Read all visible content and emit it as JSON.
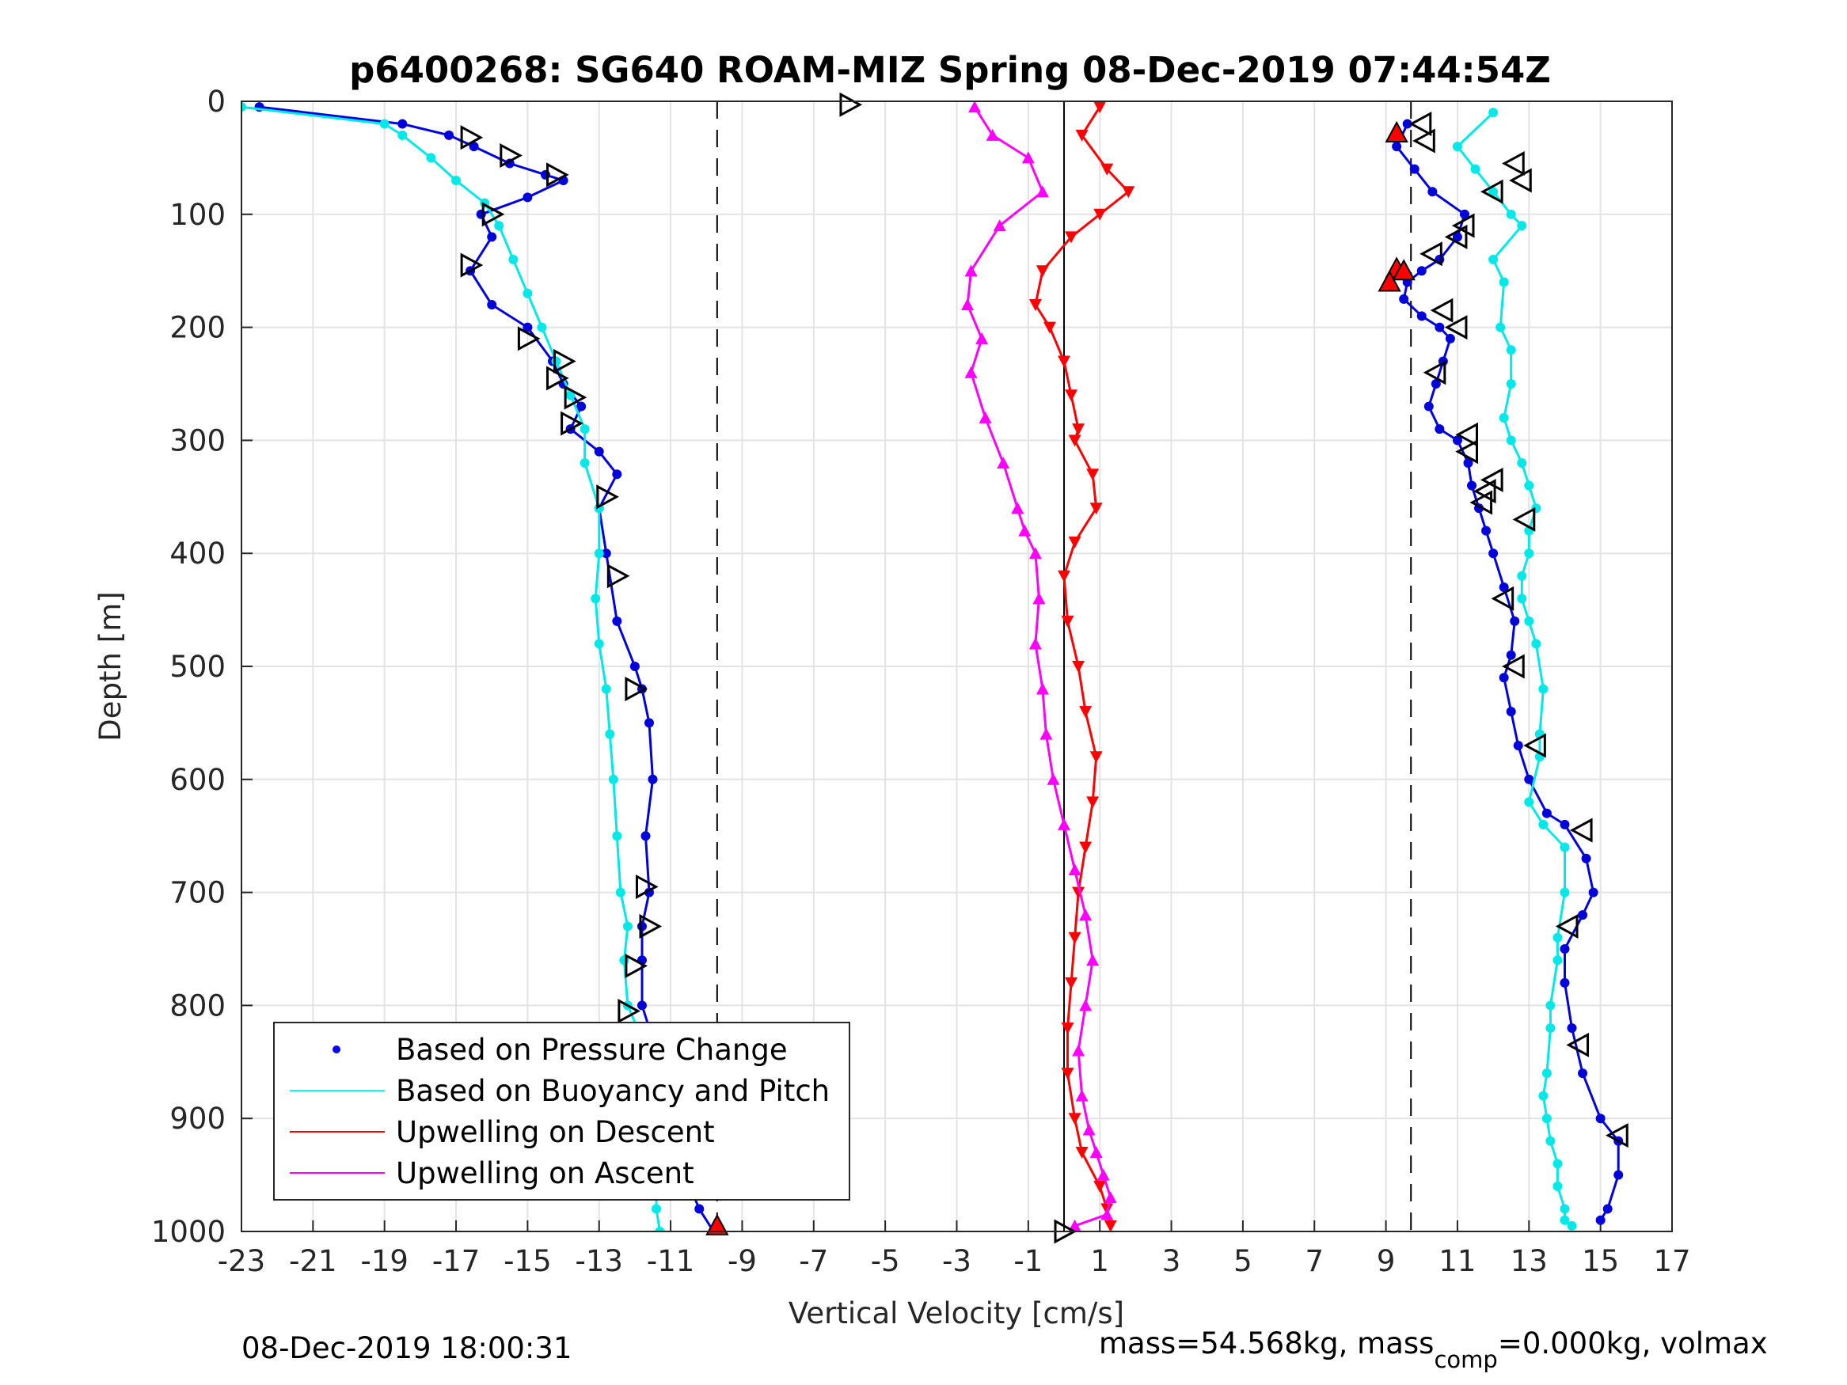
{
  "chart_data": {
    "type": "line",
    "title": "p6400268: SG640 ROAM-MIZ Spring 08-Dec-2019 07:44:54Z",
    "xlabel": "Vertical Velocity [cm/s]",
    "ylabel": "Depth [m]",
    "xlim": [
      -23,
      17
    ],
    "ylim": [
      0,
      1000
    ],
    "y_reversed": true,
    "grid": true,
    "x_ticks": [
      "-23",
      "-21",
      "-19",
      "-17",
      "-15",
      "-13",
      "-11",
      "-9",
      "-7",
      "-5",
      "-3",
      "-1",
      "1",
      "3",
      "5",
      "7",
      "9",
      "11",
      "13",
      "15",
      "17"
    ],
    "y_ticks": [
      "0",
      "100",
      "200",
      "300",
      "400",
      "500",
      "600",
      "700",
      "800",
      "900",
      "1000"
    ],
    "vertical_reference_lines": [
      {
        "x": -9.7,
        "style": "dashed"
      },
      {
        "x": 0,
        "style": "solid"
      },
      {
        "x": 9.7,
        "style": "dashed"
      }
    ],
    "legend": {
      "position": "bottom-left",
      "entries": [
        {
          "label": "Based on Pressure Change",
          "color": "#0000ff",
          "marker": "dot"
        },
        {
          "label": "Based on Buoyancy and Pitch",
          "color": "#00ffff",
          "marker": "line"
        },
        {
          "label": "Upwelling on Descent",
          "color": "#ff0000",
          "marker": "line"
        },
        {
          "label": "Upwelling on Ascent",
          "color": "#ff00ff",
          "marker": "line"
        }
      ]
    },
    "series": [
      {
        "name": "Based on Pressure Change",
        "phase": "descent",
        "color": "#0000dd",
        "x": [
          -22.5,
          -18.5,
          -17.2,
          -16.5,
          -15.5,
          -14.5,
          -14.0,
          -15.0,
          -16.3,
          -16.0,
          -16.6,
          -16.0,
          -15.0,
          -14.3,
          -14.0,
          -13.5,
          -13.8,
          -13.0,
          -12.5,
          -13.0,
          -12.8,
          -12.5,
          -12.0,
          -11.8,
          -11.6,
          -11.5,
          -11.7,
          -11.6,
          -11.8,
          -11.8,
          -11.8,
          -11.5,
          -11.0,
          -10.7,
          -10.6,
          -10.2,
          -9.8
        ],
        "y": [
          5,
          20,
          30,
          40,
          55,
          65,
          70,
          85,
          100,
          120,
          150,
          180,
          200,
          230,
          250,
          270,
          290,
          310,
          330,
          360,
          400,
          460,
          500,
          520,
          550,
          600,
          650,
          700,
          730,
          760,
          800,
          830,
          870,
          900,
          950,
          980,
          1000
        ]
      },
      {
        "name": "Based on Buoyancy and Pitch",
        "phase": "descent",
        "color": "#00e8e8",
        "x": [
          -23.0,
          -19.0,
          -18.5,
          -17.7,
          -17.0,
          -16.2,
          -15.8,
          -15.4,
          -15.0,
          -14.6,
          -14.2,
          -13.8,
          -13.4,
          -13.4,
          -13.0,
          -13.0,
          -13.1,
          -13.0,
          -12.8,
          -12.7,
          -12.6,
          -12.5,
          -12.4,
          -12.2,
          -12.3,
          -12.2,
          -11.8,
          -11.8,
          -11.5,
          -11.4,
          -11.4,
          -11.3
        ],
        "y": [
          5,
          20,
          30,
          50,
          70,
          90,
          110,
          140,
          170,
          200,
          230,
          260,
          290,
          320,
          360,
          400,
          440,
          480,
          520,
          560,
          600,
          650,
          700,
          730,
          760,
          800,
          830,
          870,
          900,
          950,
          980,
          1000
        ]
      },
      {
        "name": "Based on Pressure Change",
        "phase": "ascent",
        "color": "#0000dd",
        "x": [
          9.6,
          9.3,
          9.8,
          10.3,
          11.2,
          11.0,
          10.5,
          10.0,
          9.6,
          9.5,
          10.0,
          10.5,
          10.8,
          10.6,
          10.4,
          10.2,
          10.5,
          11.0,
          11.3,
          11.4,
          11.6,
          11.8,
          12.0,
          12.3,
          12.6,
          12.5,
          12.3,
          12.5,
          12.7,
          13.0,
          13.5,
          14.0,
          14.6,
          14.8,
          14.5,
          14.0,
          14.0,
          14.2,
          14.5,
          15.0,
          15.5,
          15.5,
          15.2,
          15.0
        ],
        "y": [
          20,
          40,
          60,
          80,
          100,
          120,
          140,
          150,
          160,
          175,
          190,
          200,
          210,
          230,
          250,
          270,
          290,
          300,
          320,
          340,
          360,
          380,
          400,
          430,
          460,
          490,
          510,
          540,
          570,
          600,
          630,
          640,
          670,
          700,
          720,
          750,
          780,
          820,
          860,
          900,
          920,
          950,
          980,
          990
        ]
      },
      {
        "name": "Based on Buoyancy and Pitch",
        "phase": "ascent",
        "color": "#00e8e8",
        "x": [
          12.0,
          11.0,
          11.5,
          12.0,
          12.5,
          12.8,
          12.0,
          12.3,
          12.2,
          12.5,
          12.5,
          12.3,
          12.5,
          12.8,
          13.0,
          13.2,
          13.0,
          13.0,
          12.8,
          12.8,
          13.0,
          13.2,
          13.4,
          13.3,
          13.3,
          13.0,
          13.4,
          14.0,
          14.0,
          13.8,
          13.8,
          13.6,
          13.6,
          13.5,
          13.4,
          13.5,
          13.6,
          13.8,
          13.8,
          14.0,
          14.0,
          14.2
        ],
        "y": [
          10,
          40,
          60,
          80,
          100,
          110,
          140,
          160,
          200,
          220,
          250,
          280,
          300,
          320,
          340,
          360,
          380,
          400,
          420,
          440,
          460,
          480,
          520,
          560,
          580,
          620,
          640,
          660,
          700,
          740,
          760,
          800,
          820,
          860,
          880,
          900,
          920,
          940,
          960,
          980,
          990,
          995
        ]
      },
      {
        "name": "Upwelling on Descent",
        "color": "#ff0000",
        "x": [
          1.0,
          0.5,
          1.2,
          1.8,
          1.0,
          0.2,
          -0.6,
          -0.8,
          -0.4,
          0.0,
          0.2,
          0.4,
          0.3,
          0.8,
          0.9,
          0.3,
          0.0,
          0.1,
          0.4,
          0.6,
          0.9,
          0.8,
          0.6,
          0.4,
          0.3,
          0.2,
          0.1,
          0.1,
          0.3,
          0.5,
          1.0,
          1.2,
          1.3
        ],
        "y": [
          5,
          30,
          60,
          80,
          100,
          120,
          150,
          180,
          200,
          230,
          260,
          290,
          300,
          330,
          360,
          390,
          420,
          460,
          500,
          540,
          580,
          620,
          660,
          700,
          740,
          780,
          820,
          860,
          900,
          930,
          960,
          980,
          995
        ]
      },
      {
        "name": "Upwelling on Ascent",
        "color": "#ff00ff",
        "x": [
          -2.5,
          -2.0,
          -1.0,
          -0.6,
          -1.8,
          -2.6,
          -2.7,
          -2.3,
          -2.6,
          -2.2,
          -1.7,
          -1.3,
          -1.1,
          -0.8,
          -0.7,
          -0.8,
          -0.6,
          -0.5,
          -0.3,
          0.0,
          0.3,
          0.6,
          0.8,
          0.6,
          0.4,
          0.5,
          0.7,
          0.9,
          1.1,
          1.3,
          1.2,
          0.3
        ],
        "y": [
          5,
          30,
          50,
          80,
          110,
          150,
          180,
          210,
          240,
          280,
          320,
          360,
          380,
          400,
          440,
          480,
          520,
          560,
          600,
          640,
          680,
          720,
          760,
          800,
          840,
          880,
          910,
          930,
          950,
          970,
          985,
          995
        ]
      }
    ],
    "markers": [
      {
        "type": "turn-triangle",
        "points": [
          [
            -16.6,
            32
          ],
          [
            -15.5,
            48
          ],
          [
            -14.2,
            65
          ],
          [
            -16.0,
            100
          ],
          [
            -16.6,
            145
          ],
          [
            -15.0,
            210
          ],
          [
            -14.0,
            230
          ],
          [
            -14.2,
            245
          ],
          [
            -13.7,
            262
          ],
          [
            -13.8,
            285
          ],
          [
            -12.8,
            350
          ],
          [
            -12.5,
            420
          ],
          [
            -12.0,
            520
          ],
          [
            -11.7,
            695
          ],
          [
            -11.6,
            730
          ],
          [
            -12.0,
            765
          ],
          [
            -12.2,
            805
          ],
          [
            -6.0,
            3
          ],
          [
            10.0,
            20
          ],
          [
            10.1,
            35
          ],
          [
            12.6,
            55
          ],
          [
            12.8,
            70
          ],
          [
            12.0,
            80
          ],
          [
            11.2,
            110
          ],
          [
            11.0,
            120
          ],
          [
            10.3,
            135
          ],
          [
            10.6,
            185
          ],
          [
            11.0,
            200
          ],
          [
            10.4,
            240
          ],
          [
            11.3,
            295
          ],
          [
            11.3,
            310
          ],
          [
            12.0,
            335
          ],
          [
            11.8,
            345
          ],
          [
            11.7,
            355
          ],
          [
            12.9,
            370
          ],
          [
            12.3,
            440
          ],
          [
            12.6,
            500
          ],
          [
            13.2,
            570
          ],
          [
            14.5,
            645
          ],
          [
            14.1,
            730
          ],
          [
            14.4,
            835
          ],
          [
            15.5,
            915
          ],
          [
            0.0,
            1000
          ]
        ]
      },
      {
        "type": "red-filled-triangle",
        "points": [
          [
            -9.7,
            995
          ],
          [
            9.3,
            28
          ],
          [
            9.3,
            148
          ],
          [
            9.1,
            160
          ],
          [
            9.5,
            150
          ]
        ]
      }
    ],
    "annotations": {
      "bottom_left": "08-Dec-2019 18:00:31",
      "bottom_right_prefix": "mass=54.568kg, mass",
      "bottom_right_subscript": "comp",
      "bottom_right_suffix": "=0.000kg, volmax"
    }
  }
}
